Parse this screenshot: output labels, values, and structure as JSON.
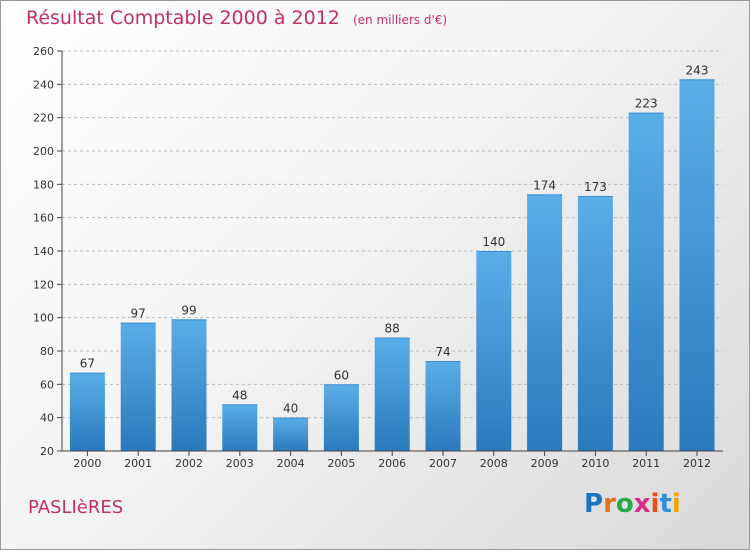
{
  "header": {
    "title": "Résultat Comptable 2000 à 2012",
    "subtitle": "(en milliers d'€)"
  },
  "footer": {
    "commune": "PASLIèRES",
    "brand": "Proxiti",
    "brand_colors": [
      "#1e73be",
      "#e2731e",
      "#2aa84a",
      "#d92d8a",
      "#e84e1b",
      "#2f8fd8",
      "#f0a400"
    ]
  },
  "colors": {
    "title": "#c0306a",
    "bar_top": "#5aaee8",
    "bar_bottom": "#2a79bd",
    "axis": "#444444",
    "grid": "#bbbbbb"
  },
  "chart_data": {
    "type": "bar",
    "title": "Résultat Comptable 2000 à 2012",
    "subtitle": "(en milliers d'€)",
    "categories": [
      "2000",
      "2001",
      "2002",
      "2003",
      "2004",
      "2005",
      "2006",
      "2007",
      "2008",
      "2009",
      "2010",
      "2011",
      "2012"
    ],
    "values": [
      67,
      97,
      99,
      48,
      40,
      60,
      88,
      74,
      140,
      174,
      173,
      223,
      243
    ],
    "ylim": [
      20,
      260
    ],
    "yticks": [
      20,
      40,
      60,
      80,
      100,
      120,
      140,
      160,
      180,
      200,
      220,
      240,
      260
    ],
    "grid": true,
    "data_labels": true
  }
}
